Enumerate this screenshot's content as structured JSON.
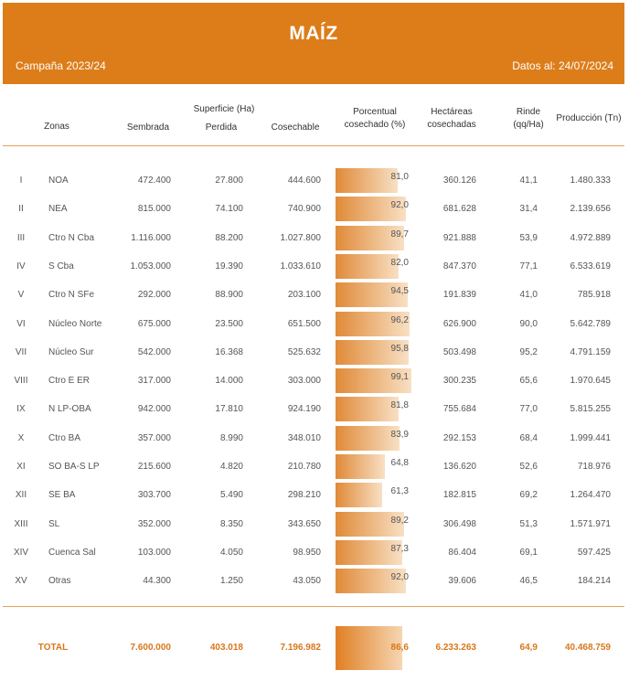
{
  "header": {
    "title": "MAÍZ",
    "campaign": "Campaña 2023/24",
    "date": "Datos al: 24/07/2024"
  },
  "columns": {
    "zonas": "Zonas",
    "superficie": "Superficie (Ha)",
    "sembrada": "Sembrada",
    "perdida": "Perdida",
    "cosechable": "Cosechable",
    "porcentual_1": "Porcentual",
    "porcentual_2": "cosechado (%)",
    "hectareas_1": "Hectáreas",
    "hectareas_2": "cosechadas",
    "rinde_1": "Rinde",
    "rinde_2": "(qq/Ha)",
    "produccion": "Producción (Tn)"
  },
  "rows": [
    {
      "num": "I",
      "zona": "NOA",
      "sembrada": "472.400",
      "perdida": "27.800",
      "cosechable": "444.600",
      "pct": "81,0",
      "pct_value": 81.0,
      "ha": "360.126",
      "rinde": "41,1",
      "prod": "1.480.333"
    },
    {
      "num": "II",
      "zona": "NEA",
      "sembrada": "815.000",
      "perdida": "74.100",
      "cosechable": "740.900",
      "pct": "92,0",
      "pct_value": 92.0,
      "ha": "681.628",
      "rinde": "31,4",
      "prod": "2.139.656"
    },
    {
      "num": "III",
      "zona": "Ctro N Cba",
      "sembrada": "1.116.000",
      "perdida": "88.200",
      "cosechable": "1.027.800",
      "pct": "89,7",
      "pct_value": 89.7,
      "ha": "921.888",
      "rinde": "53,9",
      "prod": "4.972.889"
    },
    {
      "num": "IV",
      "zona": "S Cba",
      "sembrada": "1.053.000",
      "perdida": "19.390",
      "cosechable": "1.033.610",
      "pct": "82,0",
      "pct_value": 82.0,
      "ha": "847.370",
      "rinde": "77,1",
      "prod": "6.533.619"
    },
    {
      "num": "V",
      "zona": "Ctro N SFe",
      "sembrada": "292.000",
      "perdida": "88.900",
      "cosechable": "203.100",
      "pct": "94,5",
      "pct_value": 94.5,
      "ha": "191.839",
      "rinde": "41,0",
      "prod": "785.918"
    },
    {
      "num": "VI",
      "zona": "Núcleo Norte",
      "sembrada": "675.000",
      "perdida": "23.500",
      "cosechable": "651.500",
      "pct": "96,2",
      "pct_value": 96.2,
      "ha": "626.900",
      "rinde": "90,0",
      "prod": "5.642.789"
    },
    {
      "num": "VII",
      "zona": "Núcleo Sur",
      "sembrada": "542.000",
      "perdida": "16.368",
      "cosechable": "525.632",
      "pct": "95,8",
      "pct_value": 95.8,
      "ha": "503.498",
      "rinde": "95,2",
      "prod": "4.791.159"
    },
    {
      "num": "VIII",
      "zona": "Ctro E ER",
      "sembrada": "317.000",
      "perdida": "14.000",
      "cosechable": "303.000",
      "pct": "99,1",
      "pct_value": 99.1,
      "ha": "300.235",
      "rinde": "65,6",
      "prod": "1.970.645"
    },
    {
      "num": "IX",
      "zona": "N LP-OBA",
      "sembrada": "942.000",
      "perdida": "17.810",
      "cosechable": "924.190",
      "pct": "81,8",
      "pct_value": 81.8,
      "ha": "755.684",
      "rinde": "77,0",
      "prod": "5.815.255"
    },
    {
      "num": "X",
      "zona": "Ctro BA",
      "sembrada": "357.000",
      "perdida": "8.990",
      "cosechable": "348.010",
      "pct": "83,9",
      "pct_value": 83.9,
      "ha": "292.153",
      "rinde": "68,4",
      "prod": "1.999.441"
    },
    {
      "num": "XI",
      "zona": "SO BA-S LP",
      "sembrada": "215.600",
      "perdida": "4.820",
      "cosechable": "210.780",
      "pct": "64,8",
      "pct_value": 64.8,
      "ha": "136.620",
      "rinde": "52,6",
      "prod": "718.976"
    },
    {
      "num": "XII",
      "zona": "SE BA",
      "sembrada": "303.700",
      "perdida": "5.490",
      "cosechable": "298.210",
      "pct": "61,3",
      "pct_value": 61.3,
      "ha": "182.815",
      "rinde": "69,2",
      "prod": "1.264.470"
    },
    {
      "num": "XIII",
      "zona": "SL",
      "sembrada": "352.000",
      "perdida": "8.350",
      "cosechable": "343.650",
      "pct": "89,2",
      "pct_value": 89.2,
      "ha": "306.498",
      "rinde": "51,3",
      "prod": "1.571.971"
    },
    {
      "num": "XIV",
      "zona": "Cuenca Sal",
      "sembrada": "103.000",
      "perdida": "4.050",
      "cosechable": "98.950",
      "pct": "87,3",
      "pct_value": 87.3,
      "ha": "86.404",
      "rinde": "69,1",
      "prod": "597.425"
    },
    {
      "num": "XV",
      "zona": "Otras",
      "sembrada": "44.300",
      "perdida": "1.250",
      "cosechable": "43.050",
      "pct": "92,0",
      "pct_value": 92.0,
      "ha": "39.606",
      "rinde": "46,5",
      "prod": "184.214"
    }
  ],
  "total": {
    "label": "TOTAL",
    "sembrada": "7.600.000",
    "perdida": "403.018",
    "cosechable": "7.196.982",
    "pct": "86,6",
    "pct_value": 86.6,
    "ha": "6.233.263",
    "rinde": "64,9",
    "prod": "40.468.759"
  },
  "colors": {
    "accent": "#dc7d1a"
  }
}
